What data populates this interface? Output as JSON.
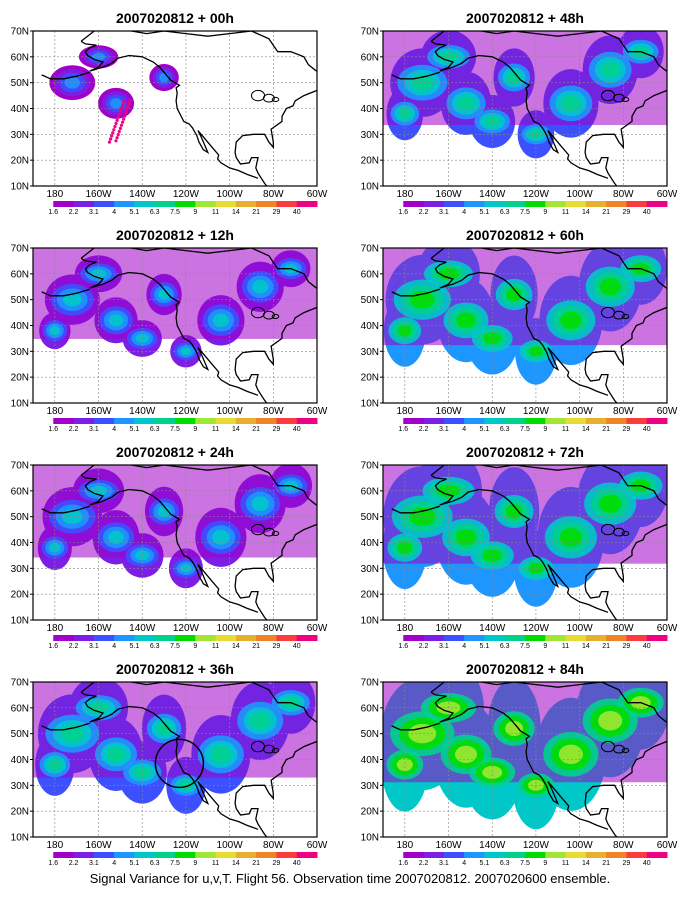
{
  "caption": "Signal Variance for u,v,T. Flight 56. Observation time 2007020812. 2007020600 ensemble.",
  "colorbar": {
    "labels": [
      "1.6",
      "2.2",
      "3.1",
      "4",
      "5.1",
      "6.3",
      "7.5",
      "9",
      "11",
      "14",
      "21",
      "29",
      "40"
    ],
    "colors": [
      "#ffffff",
      "#a000c8",
      "#7c1ee6",
      "#3c50ff",
      "#1e96ff",
      "#00c8c8",
      "#00d28c",
      "#00dc00",
      "#a0e632",
      "#e6dc32",
      "#e6af2d",
      "#f08228",
      "#fa3c3c",
      "#f00082"
    ]
  },
  "axes": {
    "lon_labels": [
      "180",
      "160W",
      "140W",
      "120W",
      "100W",
      "80W",
      "60W"
    ],
    "lat_labels": [
      "10N",
      "20N",
      "30N",
      "40N",
      "50N",
      "60N",
      "70N"
    ]
  },
  "panels": [
    {
      "title": "2007020812 + 00h",
      "level": 0,
      "dots": true
    },
    {
      "title": "2007020812 + 48h",
      "level": 2
    },
    {
      "title": "2007020812 + 12h",
      "level": 1
    },
    {
      "title": "2007020812 + 60h",
      "level": 3
    },
    {
      "title": "2007020812 + 24h",
      "level": 1.5
    },
    {
      "title": "2007020812 + 72h",
      "level": 3.5
    },
    {
      "title": "2007020812 + 36h",
      "level": 2.5,
      "circle": true
    },
    {
      "title": "2007020812 + 84h",
      "level": 4
    }
  ]
}
